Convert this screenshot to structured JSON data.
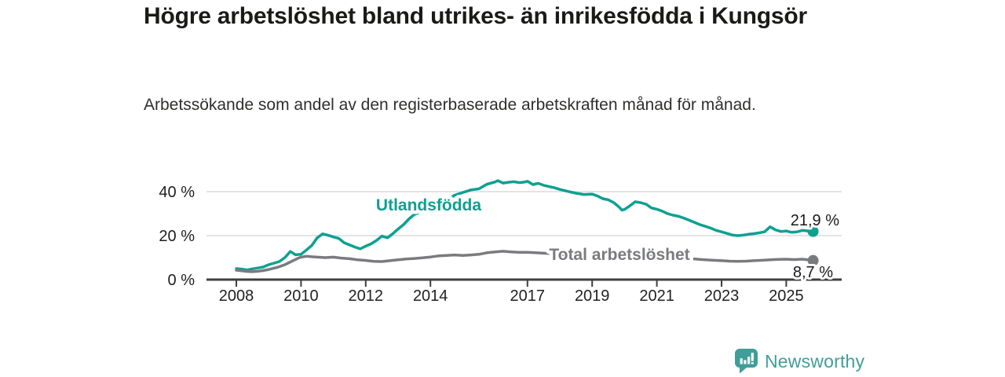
{
  "header": {
    "title": "Högre arbetslöshet bland utrikes- än inrikesfödda i Kungsör",
    "subtitle": "Arbetssökande som andel av den registerbaserade arbetskraften månad för månad."
  },
  "chart_data": {
    "type": "line",
    "title": "Högre arbetslöshet bland utrikes- än inrikesfödda i Kungsör",
    "subtitle": "Arbetssökande som andel av den registerbaserade arbetskraften månad för månad.",
    "unit": "%",
    "grid": "horizontal-only",
    "legend_position": "inline-labels-on-lines",
    "xlim": [
      2007.1,
      2026.7
    ],
    "ylim": [
      0,
      48
    ],
    "x_ticks": [
      "2008",
      "2010",
      "2012",
      "2014",
      "2017",
      "2019",
      "2021",
      "2023",
      "2025"
    ],
    "y_ticks": [
      {
        "value": 0,
        "label": "0 %"
      },
      {
        "value": 20,
        "label": "20 %"
      },
      {
        "value": 40,
        "label": "40 %"
      }
    ],
    "series": [
      {
        "name": "Utlandsfödda",
        "color": "#0ea092",
        "end_value": 21.9,
        "end_label": "21,9 %",
        "points": [
          [
            2008.0,
            5.0
          ],
          [
            2008.17,
            4.8
          ],
          [
            2008.33,
            4.4
          ],
          [
            2008.5,
            4.9
          ],
          [
            2008.67,
            5.3
          ],
          [
            2008.83,
            5.7
          ],
          [
            2009.0,
            6.8
          ],
          [
            2009.17,
            7.5
          ],
          [
            2009.33,
            8.2
          ],
          [
            2009.5,
            10.0
          ],
          [
            2009.67,
            12.8
          ],
          [
            2009.83,
            11.3
          ],
          [
            2010.0,
            11.5
          ],
          [
            2010.17,
            13.5
          ],
          [
            2010.33,
            15.5
          ],
          [
            2010.5,
            19.0
          ],
          [
            2010.67,
            20.8
          ],
          [
            2010.83,
            20.2
          ],
          [
            2011.0,
            19.4
          ],
          [
            2011.17,
            18.7
          ],
          [
            2011.33,
            16.8
          ],
          [
            2011.5,
            15.8
          ],
          [
            2011.67,
            14.8
          ],
          [
            2011.83,
            14.0
          ],
          [
            2012.0,
            15.2
          ],
          [
            2012.17,
            16.3
          ],
          [
            2012.33,
            17.8
          ],
          [
            2012.5,
            19.8
          ],
          [
            2012.67,
            19.0
          ],
          [
            2012.83,
            20.8
          ],
          [
            2013.0,
            23.0
          ],
          [
            2013.17,
            25.0
          ],
          [
            2013.33,
            27.5
          ],
          [
            2013.5,
            29.6
          ],
          [
            2013.67,
            30.6
          ],
          [
            2013.83,
            31.2
          ],
          [
            2014.0,
            32.2
          ],
          [
            2014.25,
            34.0
          ],
          [
            2014.5,
            36.0
          ],
          [
            2014.75,
            38.4
          ],
          [
            2015.0,
            39.6
          ],
          [
            2015.25,
            40.8
          ],
          [
            2015.5,
            41.3
          ],
          [
            2015.75,
            43.4
          ],
          [
            2016.0,
            44.4
          ],
          [
            2016.08,
            45.0
          ],
          [
            2016.25,
            43.9
          ],
          [
            2016.42,
            44.3
          ],
          [
            2016.58,
            44.5
          ],
          [
            2016.75,
            44.1
          ],
          [
            2016.92,
            44.4
          ],
          [
            2017.0,
            44.7
          ],
          [
            2017.17,
            43.2
          ],
          [
            2017.33,
            43.8
          ],
          [
            2017.5,
            42.9
          ],
          [
            2017.67,
            42.3
          ],
          [
            2017.83,
            41.8
          ],
          [
            2018.0,
            41.0
          ],
          [
            2018.25,
            40.1
          ],
          [
            2018.5,
            39.3
          ],
          [
            2018.75,
            38.7
          ],
          [
            2019.0,
            38.9
          ],
          [
            2019.17,
            38.0
          ],
          [
            2019.33,
            36.8
          ],
          [
            2019.5,
            36.3
          ],
          [
            2019.67,
            35.0
          ],
          [
            2019.83,
            33.0
          ],
          [
            2019.92,
            31.6
          ],
          [
            2020.0,
            31.9
          ],
          [
            2020.17,
            33.6
          ],
          [
            2020.33,
            35.4
          ],
          [
            2020.5,
            35.0
          ],
          [
            2020.67,
            34.3
          ],
          [
            2020.83,
            32.6
          ],
          [
            2021.0,
            32.0
          ],
          [
            2021.17,
            31.1
          ],
          [
            2021.33,
            30.0
          ],
          [
            2021.5,
            29.3
          ],
          [
            2021.67,
            28.8
          ],
          [
            2021.83,
            28.0
          ],
          [
            2022.0,
            27.0
          ],
          [
            2022.17,
            26.0
          ],
          [
            2022.33,
            25.0
          ],
          [
            2022.5,
            24.2
          ],
          [
            2022.67,
            23.4
          ],
          [
            2022.83,
            22.4
          ],
          [
            2023.0,
            21.7
          ],
          [
            2023.17,
            21.0
          ],
          [
            2023.33,
            20.3
          ],
          [
            2023.5,
            20.0
          ],
          [
            2023.67,
            20.2
          ],
          [
            2023.83,
            20.6
          ],
          [
            2024.0,
            20.9
          ],
          [
            2024.17,
            21.3
          ],
          [
            2024.33,
            21.7
          ],
          [
            2024.5,
            24.0
          ],
          [
            2024.67,
            22.6
          ],
          [
            2024.83,
            21.9
          ],
          [
            2025.0,
            22.1
          ],
          [
            2025.17,
            21.5
          ],
          [
            2025.33,
            21.7
          ],
          [
            2025.5,
            22.4
          ],
          [
            2025.67,
            22.1
          ],
          [
            2025.83,
            21.9
          ]
        ]
      },
      {
        "name": "Total arbetslöshet",
        "color": "#7a7b7f",
        "end_value": 8.7,
        "end_label": "8,7 %",
        "points": [
          [
            2008.0,
            4.3
          ],
          [
            2008.17,
            4.0
          ],
          [
            2008.33,
            3.7
          ],
          [
            2008.5,
            3.6
          ],
          [
            2008.67,
            3.8
          ],
          [
            2008.83,
            4.1
          ],
          [
            2009.0,
            4.6
          ],
          [
            2009.25,
            5.5
          ],
          [
            2009.5,
            6.8
          ],
          [
            2009.75,
            8.6
          ],
          [
            2009.92,
            9.8
          ],
          [
            2010.0,
            10.2
          ],
          [
            2010.17,
            10.6
          ],
          [
            2010.33,
            10.4
          ],
          [
            2010.5,
            10.2
          ],
          [
            2010.75,
            10.0
          ],
          [
            2011.0,
            10.2
          ],
          [
            2011.25,
            9.8
          ],
          [
            2011.5,
            9.5
          ],
          [
            2011.75,
            9.0
          ],
          [
            2012.0,
            8.7
          ],
          [
            2012.25,
            8.3
          ],
          [
            2012.5,
            8.2
          ],
          [
            2012.75,
            8.6
          ],
          [
            2013.0,
            9.0
          ],
          [
            2013.25,
            9.4
          ],
          [
            2013.5,
            9.6
          ],
          [
            2013.75,
            9.9
          ],
          [
            2014.0,
            10.3
          ],
          [
            2014.25,
            10.8
          ],
          [
            2014.5,
            11.0
          ],
          [
            2014.75,
            11.2
          ],
          [
            2015.0,
            11.0
          ],
          [
            2015.25,
            11.2
          ],
          [
            2015.5,
            11.5
          ],
          [
            2015.75,
            12.2
          ],
          [
            2016.0,
            12.6
          ],
          [
            2016.25,
            12.9
          ],
          [
            2016.5,
            12.6
          ],
          [
            2016.75,
            12.4
          ],
          [
            2017.0,
            12.4
          ],
          [
            2017.25,
            12.2
          ],
          [
            2017.5,
            12.0
          ],
          [
            2017.75,
            11.8
          ],
          [
            2018.0,
            11.5
          ],
          [
            2018.5,
            11.0
          ],
          [
            2019.0,
            10.8
          ],
          [
            2019.5,
            10.5
          ],
          [
            2020.0,
            11.0
          ],
          [
            2020.42,
            11.8
          ],
          [
            2021.0,
            10.8
          ],
          [
            2021.5,
            10.2
          ],
          [
            2022.0,
            9.6
          ],
          [
            2022.25,
            9.3
          ],
          [
            2022.5,
            9.0
          ],
          [
            2022.75,
            8.8
          ],
          [
            2023.0,
            8.6
          ],
          [
            2023.25,
            8.4
          ],
          [
            2023.5,
            8.3
          ],
          [
            2023.75,
            8.4
          ],
          [
            2024.0,
            8.6
          ],
          [
            2024.25,
            8.8
          ],
          [
            2024.5,
            9.0
          ],
          [
            2024.75,
            9.2
          ],
          [
            2025.0,
            9.3
          ],
          [
            2025.25,
            9.1
          ],
          [
            2025.5,
            9.3
          ],
          [
            2025.67,
            9.0
          ],
          [
            2025.83,
            8.7
          ]
        ]
      }
    ]
  },
  "footer": {
    "brand": "Newsworthy",
    "brand_color": "#3f9e98",
    "logo_icon": "bar-chart-speech-bubble-icon"
  }
}
